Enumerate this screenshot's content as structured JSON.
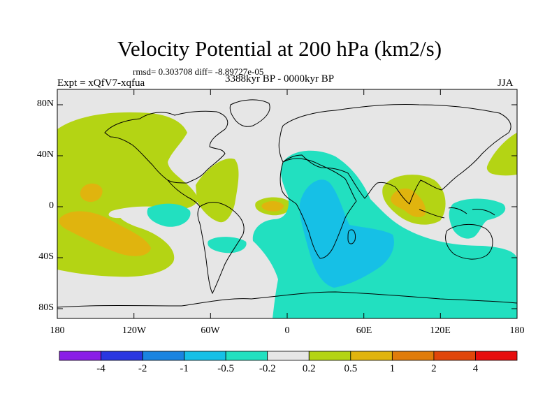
{
  "title": "Velocity Potential at 200 hPa (km2/s)",
  "stats": "rmsd= 0.303708 diff= -8.89727e-05",
  "expt": "Expt = xQfV7-xqfua",
  "period": "3388kyr BP - 0000kyr BP",
  "season": "JJA",
  "axes": {
    "y_ticks": [
      "80N",
      "40N",
      "0",
      "40S",
      "80S"
    ],
    "x_ticks": [
      "180",
      "120W",
      "60W",
      "0",
      "60E",
      "120E",
      "180"
    ]
  },
  "colorbar": {
    "labels": [
      "-4",
      "-2",
      "-1",
      "-0.5",
      "-0.2",
      "0.2",
      "0.5",
      "1",
      "2",
      "4"
    ],
    "colors": [
      "#8a1ee6",
      "#2a37e0",
      "#1a84e0",
      "#16c0e6",
      "#22e0c0",
      "#e6e6e6",
      "#b4d414",
      "#e0b40e",
      "#e07c0a",
      "#e0460a",
      "#e60e0e"
    ]
  },
  "map": {
    "background": "#e6e6e6",
    "coastline_color": "#000000"
  }
}
